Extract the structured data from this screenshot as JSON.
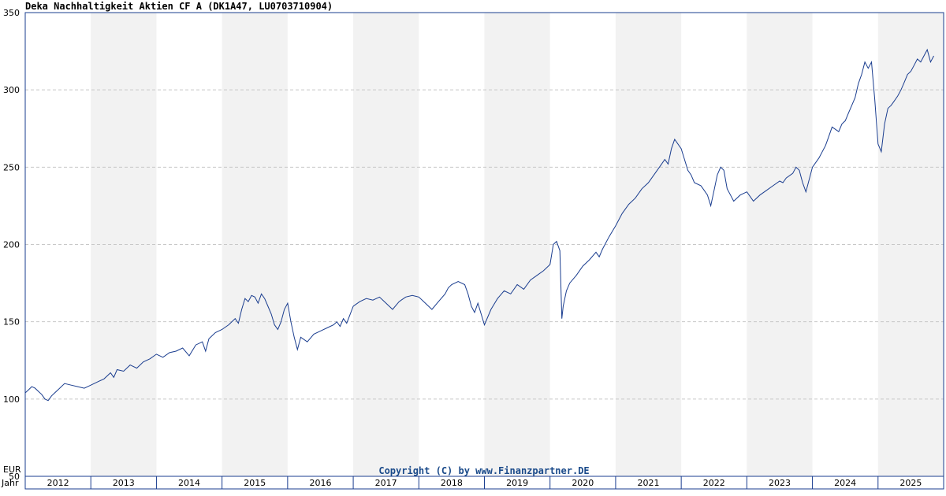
{
  "chart_data": {
    "type": "line",
    "title": "Deka Nachhaltigkeit Aktien CF A (DK1A47, LU0703710904)",
    "ylabel": "EUR",
    "xlabel": "Jahr",
    "copyright": "Copyright (C) by www.Finanzpartner.DE",
    "ylim": [
      50,
      350
    ],
    "yticks": [
      50,
      100,
      150,
      200,
      250,
      300,
      350
    ],
    "xlim": [
      2012.0,
      2026.0
    ],
    "years": [
      "2012",
      "2013",
      "2014",
      "2015",
      "2016",
      "2017",
      "2018",
      "2019",
      "2020",
      "2021",
      "2022",
      "2023",
      "2024",
      "2025"
    ],
    "grid": true,
    "alternating_year_bands": true,
    "line_color": "#1a3d8f",
    "band_color": "#f2f2f2",
    "series": [
      {
        "values_x": [
          2012.0,
          2012.05,
          2012.1,
          2012.15,
          2012.2,
          2012.25,
          2012.3,
          2012.35,
          2012.4,
          2012.45,
          2012.5,
          2012.6,
          2012.7,
          2012.8,
          2012.9,
          2013.0,
          2013.1,
          2013.2,
          2013.3,
          2013.35,
          2013.4,
          2013.5,
          2013.6,
          2013.7,
          2013.8,
          2013.9,
          2014.0,
          2014.1,
          2014.2,
          2014.3,
          2014.4,
          2014.5,
          2014.6,
          2014.7,
          2014.75,
          2014.8,
          2014.9,
          2015.0,
          2015.1,
          2015.2,
          2015.25,
          2015.3,
          2015.35,
          2015.4,
          2015.45,
          2015.5,
          2015.55,
          2015.6,
          2015.65,
          2015.7,
          2015.75,
          2015.8,
          2015.85,
          2015.9,
          2015.95,
          2016.0,
          2016.05,
          2016.1,
          2016.15,
          2016.2,
          2016.3,
          2016.4,
          2016.5,
          2016.6,
          2016.7,
          2016.75,
          2016.8,
          2016.85,
          2016.9,
          2017.0,
          2017.1,
          2017.2,
          2017.3,
          2017.4,
          2017.5,
          2017.6,
          2017.7,
          2017.8,
          2017.9,
          2018.0,
          2018.1,
          2018.2,
          2018.3,
          2018.4,
          2018.45,
          2018.5,
          2018.6,
          2018.7,
          2018.75,
          2018.8,
          2018.85,
          2018.9,
          2019.0,
          2019.1,
          2019.2,
          2019.3,
          2019.4,
          2019.5,
          2019.6,
          2019.7,
          2019.8,
          2019.9,
          2020.0,
          2020.05,
          2020.1,
          2020.15,
          2020.18,
          2020.2,
          2020.25,
          2020.3,
          2020.4,
          2020.5,
          2020.6,
          2020.7,
          2020.75,
          2020.8,
          2020.9,
          2021.0,
          2021.1,
          2021.2,
          2021.3,
          2021.4,
          2021.5,
          2021.6,
          2021.7,
          2021.75,
          2021.8,
          2021.85,
          2021.9,
          2022.0,
          2022.05,
          2022.1,
          2022.15,
          2022.2,
          2022.3,
          2022.35,
          2022.4,
          2022.45,
          2022.5,
          2022.55,
          2022.6,
          2022.65,
          2022.7,
          2022.75,
          2022.8,
          2022.9,
          2023.0,
          2023.1,
          2023.2,
          2023.3,
          2023.4,
          2023.5,
          2023.55,
          2023.6,
          2023.7,
          2023.75,
          2023.8,
          2023.85,
          2023.9,
          2024.0,
          2024.1,
          2024.2,
          2024.25,
          2024.3,
          2024.4,
          2024.45,
          2024.5,
          2024.55,
          2024.6,
          2024.65,
          2024.7,
          2024.75,
          2024.8,
          2024.85,
          2024.9,
          2024.95,
          2025.0,
          2025.05,
          2025.1,
          2025.15,
          2025.2,
          2025.25,
          2025.3,
          2025.35,
          2025.4,
          2025.45,
          2025.5,
          2025.55,
          2025.6,
          2025.65,
          2025.7,
          2025.75,
          2025.8,
          2025.85,
          2025.9
        ],
        "values_y": [
          104,
          106,
          108,
          107,
          105,
          103,
          100,
          99,
          102,
          104,
          106,
          110,
          109,
          108,
          107,
          109,
          111,
          113,
          117,
          114,
          119,
          118,
          122,
          120,
          124,
          126,
          129,
          127,
          130,
          131,
          133,
          128,
          135,
          137,
          131,
          139,
          143,
          145,
          148,
          152,
          149,
          158,
          165,
          163,
          167,
          166,
          162,
          168,
          165,
          160,
          155,
          148,
          145,
          150,
          158,
          162,
          150,
          140,
          132,
          140,
          137,
          142,
          144,
          146,
          148,
          150,
          147,
          152,
          149,
          160,
          163,
          165,
          164,
          166,
          162,
          158,
          163,
          166,
          167,
          166,
          162,
          158,
          163,
          168,
          172,
          174,
          176,
          174,
          168,
          160,
          156,
          162,
          148,
          158,
          165,
          170,
          168,
          174,
          171,
          177,
          180,
          183,
          187,
          200,
          202,
          196,
          152,
          160,
          170,
          175,
          180,
          186,
          190,
          195,
          192,
          197,
          205,
          212,
          220,
          226,
          230,
          236,
          240,
          246,
          252,
          255,
          252,
          262,
          268,
          262,
          255,
          248,
          245,
          240,
          238,
          235,
          232,
          225,
          235,
          245,
          250,
          248,
          236,
          232,
          228,
          232,
          234,
          228,
          232,
          235,
          238,
          241,
          240,
          243,
          246,
          250,
          248,
          240,
          234,
          250,
          256,
          264,
          270,
          276,
          273,
          278,
          280,
          285,
          290,
          295,
          304,
          310,
          318,
          314,
          318,
          294,
          265,
          260,
          278,
          288,
          290,
          293,
          296,
          300,
          305,
          310,
          312,
          316,
          320,
          318,
          322,
          326,
          318,
          322
        ]
      }
    ]
  }
}
